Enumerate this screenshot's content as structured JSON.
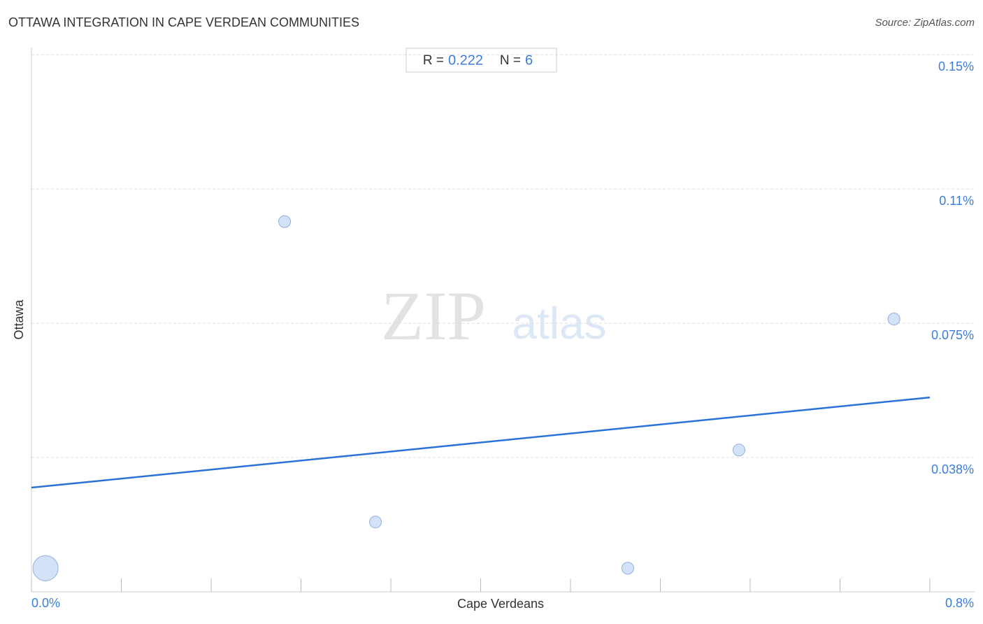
{
  "chart_data": {
    "type": "scatter",
    "title": "OTTAWA INTEGRATION IN CAPE VERDEAN COMMUNITIES",
    "source": "Source: ZipAtlas.com",
    "x_label": "Cape Verdeans",
    "y_label": "Ottawa",
    "stats": {
      "r_label": "R =",
      "r": 0.222,
      "n_label": "N =",
      "n": 6
    },
    "watermark": {
      "zip": "ZIP",
      "atlas": "atlas"
    },
    "xlim": [
      0,
      0.8
    ],
    "ylim": [
      0,
      0.152
    ],
    "xticks": [
      {
        "value": 0,
        "label": "0.0%"
      },
      {
        "value": 0.8,
        "label": "0.8%"
      }
    ],
    "minor_xticks": [
      0.08,
      0.16,
      0.24,
      0.32,
      0.4,
      0.48,
      0.56,
      0.64,
      0.72
    ],
    "yticks": [
      {
        "value": 0.0375,
        "label": "0.038%"
      },
      {
        "value": 0.075,
        "label": "0.075%"
      },
      {
        "value": 0.1125,
        "label": "0.11%"
      },
      {
        "value": 0.15,
        "label": "0.15%"
      }
    ],
    "grid": true,
    "color": "#c9dbf5",
    "edge_color": "#8fb0e0",
    "x": [
      0.0125,
      0.2254,
      0.3063,
      0.531,
      0.63,
      0.768
    ],
    "values": [
      0.0066,
      0.1034,
      0.0195,
      0.0066,
      0.0396,
      0.0762
    ],
    "sizes": [
      18,
      8.5,
      8.5,
      8.5,
      8.5,
      8.5
    ],
    "trend": {
      "color": "#2a72d5",
      "x": [
        0,
        0.8
      ],
      "y": [
        0.0291,
        0.0543
      ]
    }
  }
}
